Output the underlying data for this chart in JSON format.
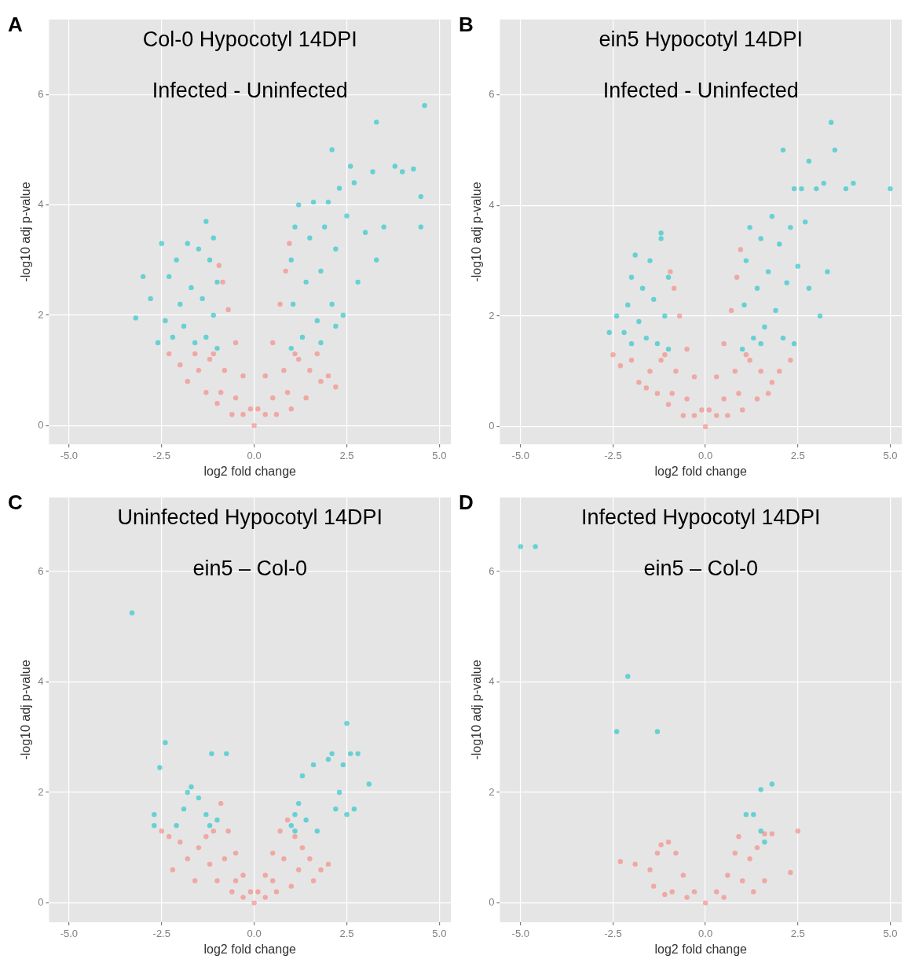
{
  "chart_data": [
    {
      "type": "scatter",
      "title": "Col-0 Hypocotyl 14DPI",
      "subtitle": "Infected - Uninfected",
      "xlabel": "log2 fold change",
      "ylabel": "-log10 adj p-value",
      "annotations": [
        "A"
      ],
      "xlim": [
        -5.54,
        5.31
      ],
      "ylim": [
        -0.34,
        7.36
      ],
      "xticks": [
        {
          "value": -5,
          "label": "-5.0"
        },
        {
          "value": -2.5,
          "label": "-2.5"
        },
        {
          "value": 0,
          "label": "0.0"
        },
        {
          "value": 2.5,
          "label": "2.5"
        },
        {
          "value": 5,
          "label": "5.0"
        }
      ],
      "yticks": [
        0,
        2,
        4,
        6
      ],
      "grid": true,
      "marker": "circle",
      "series": [
        {
          "color": "#f8766d",
          "x": [
            0,
            -0.1,
            0.1,
            -0.3,
            0.3,
            -0.5,
            0.5,
            -0.7,
            0.7,
            -0.85,
            0.85,
            -0.95,
            0.95,
            -1.2,
            -1.5,
            -1.8,
            -2.0,
            -2.3,
            -1.3,
            -1.0,
            -0.6,
            1.2,
            1.5,
            1.8,
            2.0,
            1.4,
            1.0,
            0.6,
            -0.3,
            0.3,
            -0.8,
            0.8,
            -1.1,
            1.1,
            -0.5,
            0.5,
            -1.6,
            1.7,
            -0.9,
            0.9,
            2.2
          ],
          "values": [
            0,
            0.3,
            0.3,
            0.9,
            0.9,
            1.5,
            1.5,
            2.1,
            2.2,
            2.6,
            2.8,
            2.9,
            3.3,
            1.2,
            1.0,
            0.8,
            1.1,
            1.3,
            0.6,
            0.4,
            0.2,
            1.2,
            1.0,
            0.8,
            0.9,
            0.5,
            0.3,
            0.2,
            0.2,
            0.2,
            1.0,
            1.0,
            1.3,
            1.3,
            0.5,
            0.5,
            1.3,
            1.3,
            0.6,
            0.6,
            0.7
          ]
        },
        {
          "color": "#00bfc4",
          "x": [
            -1.0,
            -1.1,
            -1.0,
            -1.2,
            -1.3,
            -1.4,
            -1.5,
            -1.6,
            -1.7,
            -1.8,
            -1.9,
            -2.0,
            -2.1,
            -2.2,
            -2.3,
            -2.4,
            -2.5,
            -1.3,
            -2.8,
            -3.0,
            -3.2,
            -2.6,
            -1.1,
            1.0,
            1.05,
            1.0,
            1.1,
            1.2,
            1.3,
            1.4,
            1.5,
            1.6,
            1.7,
            1.8,
            1.9,
            2.0,
            2.1,
            2.2,
            2.3,
            2.4,
            2.5,
            2.6,
            2.8,
            3.0,
            3.2,
            3.3,
            3.5,
            3.8,
            4.0,
            4.3,
            4.5,
            4.5,
            4.6,
            2.1,
            2.7,
            3.3,
            1.8,
            2.2
          ],
          "values": [
            1.4,
            2.0,
            2.6,
            3.0,
            1.6,
            2.3,
            3.2,
            1.5,
            2.5,
            3.3,
            1.8,
            2.2,
            3.0,
            1.6,
            2.7,
            1.9,
            3.3,
            3.7,
            2.3,
            2.7,
            1.95,
            1.5,
            3.4,
            1.4,
            2.2,
            3.0,
            3.6,
            4.0,
            1.6,
            2.6,
            3.4,
            4.05,
            1.9,
            2.8,
            3.6,
            4.05,
            2.2,
            3.2,
            4.3,
            2.0,
            3.8,
            4.7,
            2.6,
            3.5,
            4.6,
            5.5,
            3.6,
            4.7,
            4.6,
            4.65,
            4.15,
            3.6,
            5.8,
            5.0,
            4.4,
            3.0,
            1.5,
            1.8
          ]
        }
      ]
    },
    {
      "type": "scatter",
      "title": "ein5 Hypocotyl 14DPI",
      "subtitle": "Infected - Uninfected",
      "xlabel": "log2 fold change",
      "ylabel": "-log10 adj p-value",
      "annotations": [
        "B"
      ],
      "xlim": [
        -5.56,
        5.31
      ],
      "ylim": [
        -0.32,
        7.36
      ],
      "xticks": [
        {
          "value": -5,
          "label": "-5.0"
        },
        {
          "value": -2.5,
          "label": "-2.5"
        },
        {
          "value": 0,
          "label": "0.0"
        },
        {
          "value": 2.5,
          "label": "2.5"
        },
        {
          "value": 5,
          "label": "5.0"
        }
      ],
      "yticks": [
        0,
        2,
        4,
        6
      ],
      "grid": true,
      "marker": "circle",
      "series": [
        {
          "color": "#f8766d",
          "x": [
            0,
            -0.1,
            0.1,
            -0.3,
            0.3,
            -0.5,
            0.5,
            -0.7,
            0.7,
            -0.85,
            0.85,
            -0.95,
            0.95,
            -1.2,
            -1.5,
            -1.8,
            -2.0,
            -2.3,
            -2.5,
            -1.3,
            -1.0,
            -0.6,
            1.2,
            1.5,
            1.8,
            2.0,
            2.3,
            1.4,
            1.0,
            0.6,
            -0.3,
            0.3,
            -0.8,
            0.8,
            -1.1,
            1.1,
            -0.5,
            0.5,
            -1.6,
            1.7,
            -0.9,
            0.9
          ],
          "values": [
            0,
            0.3,
            0.3,
            0.9,
            0.9,
            1.4,
            1.5,
            2.0,
            2.1,
            2.5,
            2.7,
            2.8,
            3.2,
            1.2,
            1.0,
            0.8,
            1.2,
            1.1,
            1.3,
            0.6,
            0.4,
            0.2,
            1.2,
            1.0,
            0.8,
            1.0,
            1.2,
            0.5,
            0.3,
            0.2,
            0.2,
            0.2,
            1.0,
            1.0,
            1.3,
            1.3,
            0.5,
            0.5,
            0.7,
            0.6,
            0.6,
            0.6
          ]
        },
        {
          "color": "#00bfc4",
          "x": [
            -1.0,
            -1.1,
            -1.0,
            -1.2,
            -1.3,
            -1.4,
            -1.5,
            -1.6,
            -1.7,
            -1.8,
            -1.9,
            -2.0,
            -2.1,
            -2.2,
            -2.4,
            -2.6,
            -1.2,
            -2.0,
            1.0,
            1.05,
            1.1,
            1.2,
            1.3,
            1.4,
            1.5,
            1.6,
            1.7,
            1.8,
            1.9,
            2.0,
            2.1,
            2.2,
            2.3,
            2.4,
            2.5,
            2.6,
            2.7,
            2.8,
            3.0,
            3.2,
            3.4,
            3.5,
            3.3,
            3.8,
            4.0,
            5.0,
            2.1,
            2.8,
            2.4,
            1.5,
            3.1
          ],
          "values": [
            1.4,
            2.0,
            2.7,
            3.4,
            1.5,
            2.3,
            3.0,
            1.6,
            2.5,
            1.9,
            3.1,
            1.5,
            2.2,
            1.7,
            2.0,
            1.7,
            3.5,
            2.7,
            1.4,
            2.2,
            3.0,
            3.6,
            1.6,
            2.5,
            3.4,
            1.8,
            2.8,
            3.8,
            2.1,
            3.3,
            1.6,
            2.6,
            3.6,
            1.5,
            2.9,
            4.3,
            3.7,
            2.5,
            4.3,
            4.4,
            5.5,
            5.0,
            2.8,
            4.3,
            4.4,
            4.3,
            5.0,
            4.8,
            4.3,
            1.5,
            2.0
          ]
        }
      ]
    },
    {
      "type": "scatter",
      "title": "Uninfected Hypocotyl 14DPI",
      "subtitle": "ein5 – Col-0",
      "xlabel": "log2 fold change",
      "ylabel": "-log10 adj p-value",
      "annotations": [
        "C"
      ],
      "xlim": [
        -5.54,
        5.31
      ],
      "ylim": [
        -0.35,
        7.34
      ],
      "xticks": [
        {
          "value": -5,
          "label": "-5.0"
        },
        {
          "value": -2.5,
          "label": "-2.5"
        },
        {
          "value": 0,
          "label": "0.0"
        },
        {
          "value": 2.5,
          "label": "2.5"
        },
        {
          "value": 5,
          "label": "5.0"
        }
      ],
      "yticks": [
        0,
        2,
        4,
        6
      ],
      "grid": true,
      "marker": "circle",
      "series": [
        {
          "color": "#f8766d",
          "x": [
            0,
            -0.1,
            0.1,
            -0.3,
            0.3,
            -0.5,
            0.5,
            -0.7,
            0.7,
            -0.9,
            0.9,
            -1.1,
            1.1,
            -1.3,
            -1.5,
            -1.8,
            -2.0,
            -2.3,
            -2.5,
            -1.0,
            -0.6,
            1.3,
            1.5,
            1.8,
            2.0,
            1.0,
            0.6,
            -0.3,
            0.3,
            -0.8,
            0.8,
            -1.6,
            1.6,
            -2.2,
            -1.2,
            1.2,
            -0.5,
            0.5
          ],
          "values": [
            0,
            0.2,
            0.2,
            0.5,
            0.5,
            0.9,
            0.9,
            1.3,
            1.3,
            1.8,
            1.5,
            1.3,
            1.2,
            1.2,
            1.0,
            0.8,
            1.1,
            1.2,
            1.3,
            0.4,
            0.2,
            1.0,
            0.8,
            0.6,
            0.7,
            0.3,
            0.2,
            0.1,
            0.1,
            0.8,
            0.8,
            0.4,
            0.4,
            0.6,
            0.7,
            0.6,
            0.4,
            0.4
          ]
        },
        {
          "color": "#00bfc4",
          "x": [
            -3.3,
            -2.4,
            -2.55,
            -2.7,
            -2.7,
            -2.1,
            -1.9,
            -1.7,
            -1.5,
            -1.3,
            -1.2,
            -1.15,
            -1.0,
            -1.8,
            -0.75,
            1.0,
            1.1,
            1.2,
            1.3,
            1.4,
            1.6,
            1.7,
            2.0,
            2.1,
            2.2,
            2.3,
            2.4,
            2.5,
            2.6,
            2.7,
            2.8,
            3.1,
            2.5,
            1.1
          ],
          "values": [
            5.25,
            2.9,
            2.45,
            1.6,
            1.4,
            1.4,
            1.7,
            2.1,
            1.9,
            1.6,
            1.4,
            2.7,
            1.5,
            2.0,
            2.7,
            1.4,
            1.6,
            1.8,
            2.3,
            1.5,
            2.5,
            1.3,
            2.6,
            2.7,
            1.7,
            2.0,
            2.5,
            3.25,
            2.7,
            1.7,
            2.7,
            2.15,
            1.6,
            1.3
          ]
        }
      ]
    },
    {
      "type": "scatter",
      "title": "Infected Hypocotyl 14DPI",
      "subtitle": "ein5 – Col-0",
      "xlabel": "log2 fold change",
      "ylabel": "-log10 adj p-value",
      "annotations": [
        "D"
      ],
      "xlim": [
        -5.56,
        5.31
      ],
      "ylim": [
        -0.35,
        7.34
      ],
      "xticks": [
        {
          "value": -5,
          "label": "-5.0"
        },
        {
          "value": -2.5,
          "label": "-2.5"
        },
        {
          "value": 0,
          "label": "0.0"
        },
        {
          "value": 2.5,
          "label": "2.5"
        },
        {
          "value": 5,
          "label": "5.0"
        }
      ],
      "yticks": [
        0,
        2,
        4,
        6
      ],
      "grid": true,
      "marker": "circle",
      "series": [
        {
          "color": "#f8766d",
          "x": [
            0,
            -0.3,
            0.3,
            -0.6,
            0.6,
            -0.8,
            0.8,
            0.9,
            -1.0,
            -1.2,
            -1.3,
            -1.5,
            -1.4,
            -0.9,
            1.0,
            1.2,
            1.4,
            1.6,
            1.8,
            2.5,
            2.3,
            -2.3,
            -1.9,
            -1.1,
            0.5,
            -0.5,
            1.3,
            1.6
          ],
          "values": [
            0,
            0.2,
            0.2,
            0.5,
            0.5,
            0.9,
            0.9,
            1.2,
            1.1,
            1.05,
            0.9,
            0.6,
            0.3,
            0.2,
            0.4,
            0.8,
            1.0,
            1.25,
            1.25,
            1.3,
            0.55,
            0.75,
            0.7,
            0.15,
            0.1,
            0.1,
            0.2,
            0.4
          ]
        },
        {
          "color": "#00bfc4",
          "x": [
            -5.0,
            -4.6,
            -2.1,
            -2.4,
            -1.3,
            1.5,
            1.8,
            1.3,
            1.1,
            1.5,
            1.6
          ],
          "values": [
            6.45,
            6.45,
            4.1,
            3.1,
            3.1,
            2.05,
            2.15,
            1.6,
            1.6,
            1.3,
            1.1
          ]
        }
      ]
    }
  ]
}
